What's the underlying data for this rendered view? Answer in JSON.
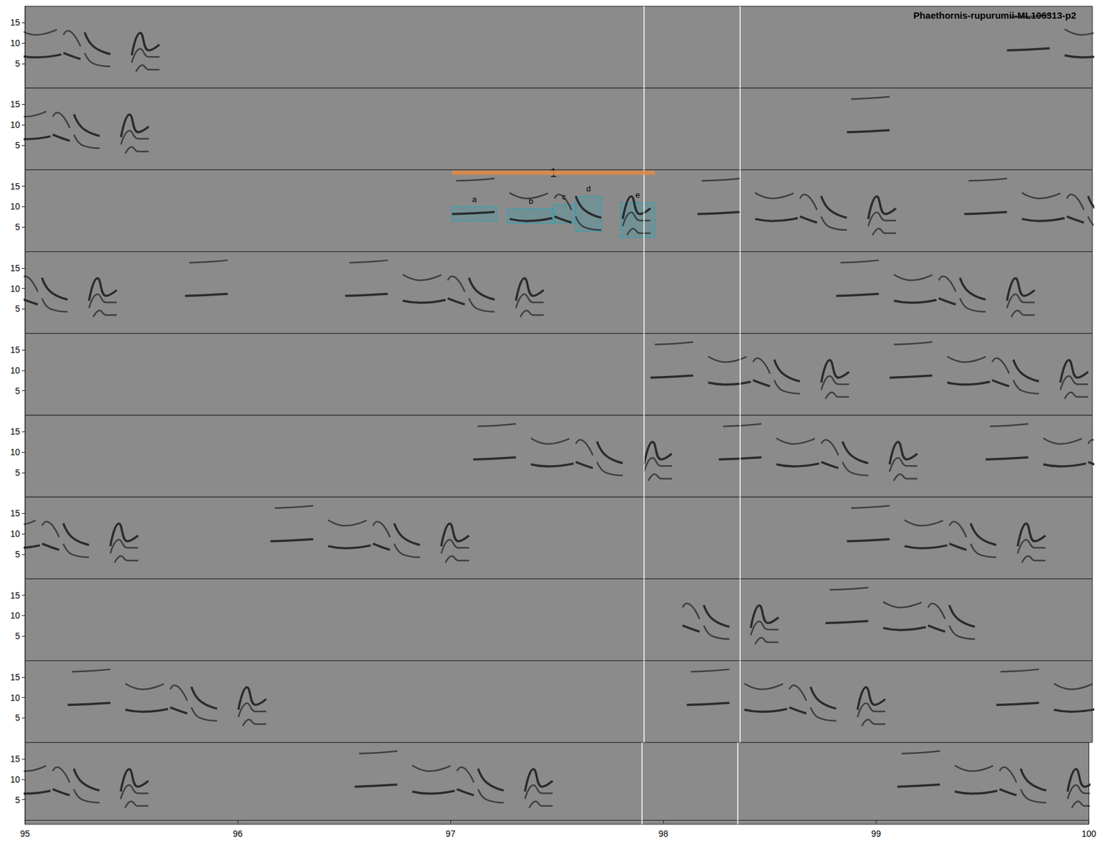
{
  "chart_data": {
    "type": "spectrogram",
    "title": "Phaethornis-rupurumii-ML106313-p2",
    "xlim": [
      95,
      100
    ],
    "xticks": [
      95,
      96,
      97,
      98,
      99,
      100
    ],
    "ylim": [
      -1,
      19
    ],
    "yticks": [
      5,
      10,
      15
    ],
    "color": "#262626",
    "cursor_lines": [
      97.9,
      98.35
    ],
    "note_template": {
      "a": [
        [
          [
            0.0,
            8.2
          ],
          [
            0.1,
            8.4
          ],
          [
            0.2,
            8.7
          ]
        ],
        [
          [
            0.02,
            16.3
          ],
          [
            0.11,
            16.5
          ],
          [
            0.2,
            16.9
          ]
        ]
      ],
      "b": [
        [
          [
            0.27,
            7.0
          ],
          [
            0.35,
            6.5
          ],
          [
            0.47,
            7.2
          ]
        ],
        [
          [
            0.27,
            13.4
          ],
          [
            0.35,
            12.0
          ],
          [
            0.45,
            13.3
          ]
        ]
      ],
      "c": [
        [
          [
            0.48,
            7.6
          ],
          [
            0.52,
            6.8
          ],
          [
            0.56,
            6.1
          ]
        ],
        [
          [
            0.48,
            12.0
          ],
          [
            0.5,
            13.0
          ],
          [
            0.56,
            9.2
          ]
        ]
      ],
      "d": [
        [
          [
            0.58,
            12.6
          ],
          [
            0.62,
            9.2
          ],
          [
            0.7,
            7.3
          ]
        ],
        [
          [
            0.58,
            7.6
          ],
          [
            0.62,
            5.0
          ],
          [
            0.7,
            4.3
          ]
        ]
      ],
      "e": [
        [
          [
            0.8,
            7.0
          ],
          [
            0.84,
            12.5
          ],
          [
            0.88,
            8.2
          ],
          [
            0.93,
            9.6
          ]
        ],
        [
          [
            0.8,
            5.2
          ],
          [
            0.84,
            8.6
          ],
          [
            0.88,
            6.6
          ],
          [
            0.93,
            6.6
          ]
        ],
        [
          [
            0.82,
            3.0
          ],
          [
            0.85,
            4.6
          ],
          [
            0.88,
            3.5
          ],
          [
            0.93,
            3.5
          ]
        ]
      ]
    },
    "rows": [
      {
        "songs": [
          {
            "t": 94.7,
            "notes": "abcde"
          },
          {
            "t": 99.6,
            "notes": "abcde"
          }
        ]
      },
      {
        "songs": [
          {
            "t": 94.65,
            "notes": "abcde"
          },
          {
            "t": 98.85,
            "notes": "a"
          }
        ]
      },
      {
        "songs": [
          {
            "t": 97.0,
            "notes": "abcde"
          },
          {
            "t": 98.15,
            "notes": "abcde"
          },
          {
            "t": 99.4,
            "notes": "abcde"
          }
        ],
        "annotation": {
          "label": "1",
          "x": [
            97.0,
            97.95
          ],
          "y": 18.3,
          "color": "#e0894a",
          "box_color": "#2aa3b5",
          "boxes": [
            {
              "name": "a",
              "x": [
                97.0,
                97.21
              ],
              "y": [
                6.5,
                10.0
              ]
            },
            {
              "name": "b",
              "x": [
                97.26,
                97.48
              ],
              "y": [
                6.0,
                9.5
              ]
            },
            {
              "name": "c",
              "x": [
                97.47,
                97.58
              ],
              "y": [
                6.0,
                10.5
              ]
            },
            {
              "name": "d",
              "x": [
                97.58,
                97.7
              ],
              "y": [
                4.0,
                12.5
              ]
            },
            {
              "name": "e",
              "x": [
                97.79,
                97.95
              ],
              "y": [
                2.5,
                11.0
              ]
            }
          ]
        }
      },
      {
        "songs": [
          {
            "t": 94.5,
            "notes": "abcde"
          },
          {
            "t": 95.75,
            "notes": "a"
          },
          {
            "t": 96.5,
            "notes": "abcde"
          },
          {
            "t": 98.8,
            "notes": "abcde"
          }
        ]
      },
      {
        "songs": [
          {
            "t": 97.93,
            "notes": "abcde"
          },
          {
            "t": 99.05,
            "notes": "abcde"
          }
        ]
      },
      {
        "songs": [
          {
            "t": 97.1,
            "notes": "abcde"
          },
          {
            "t": 98.25,
            "notes": "abcde"
          },
          {
            "t": 99.5,
            "notes": "abcde"
          }
        ]
      },
      {
        "songs": [
          {
            "t": 94.6,
            "notes": "abcde"
          },
          {
            "t": 96.15,
            "notes": "abcde"
          },
          {
            "t": 98.85,
            "notes": "abcde"
          }
        ]
      },
      {
        "songs": [
          {
            "t": 97.6,
            "notes": "cde"
          },
          {
            "t": 98.75,
            "notes": "abcd"
          }
        ]
      },
      {
        "songs": [
          {
            "t": 95.2,
            "notes": "abcde"
          },
          {
            "t": 98.1,
            "notes": "abcde"
          },
          {
            "t": 99.55,
            "notes": "abcde"
          }
        ]
      },
      {
        "songs": [
          {
            "t": 94.65,
            "notes": "abcde"
          },
          {
            "t": 96.55,
            "notes": "abcde"
          },
          {
            "t": 99.1,
            "notes": "abcde"
          }
        ]
      }
    ]
  }
}
